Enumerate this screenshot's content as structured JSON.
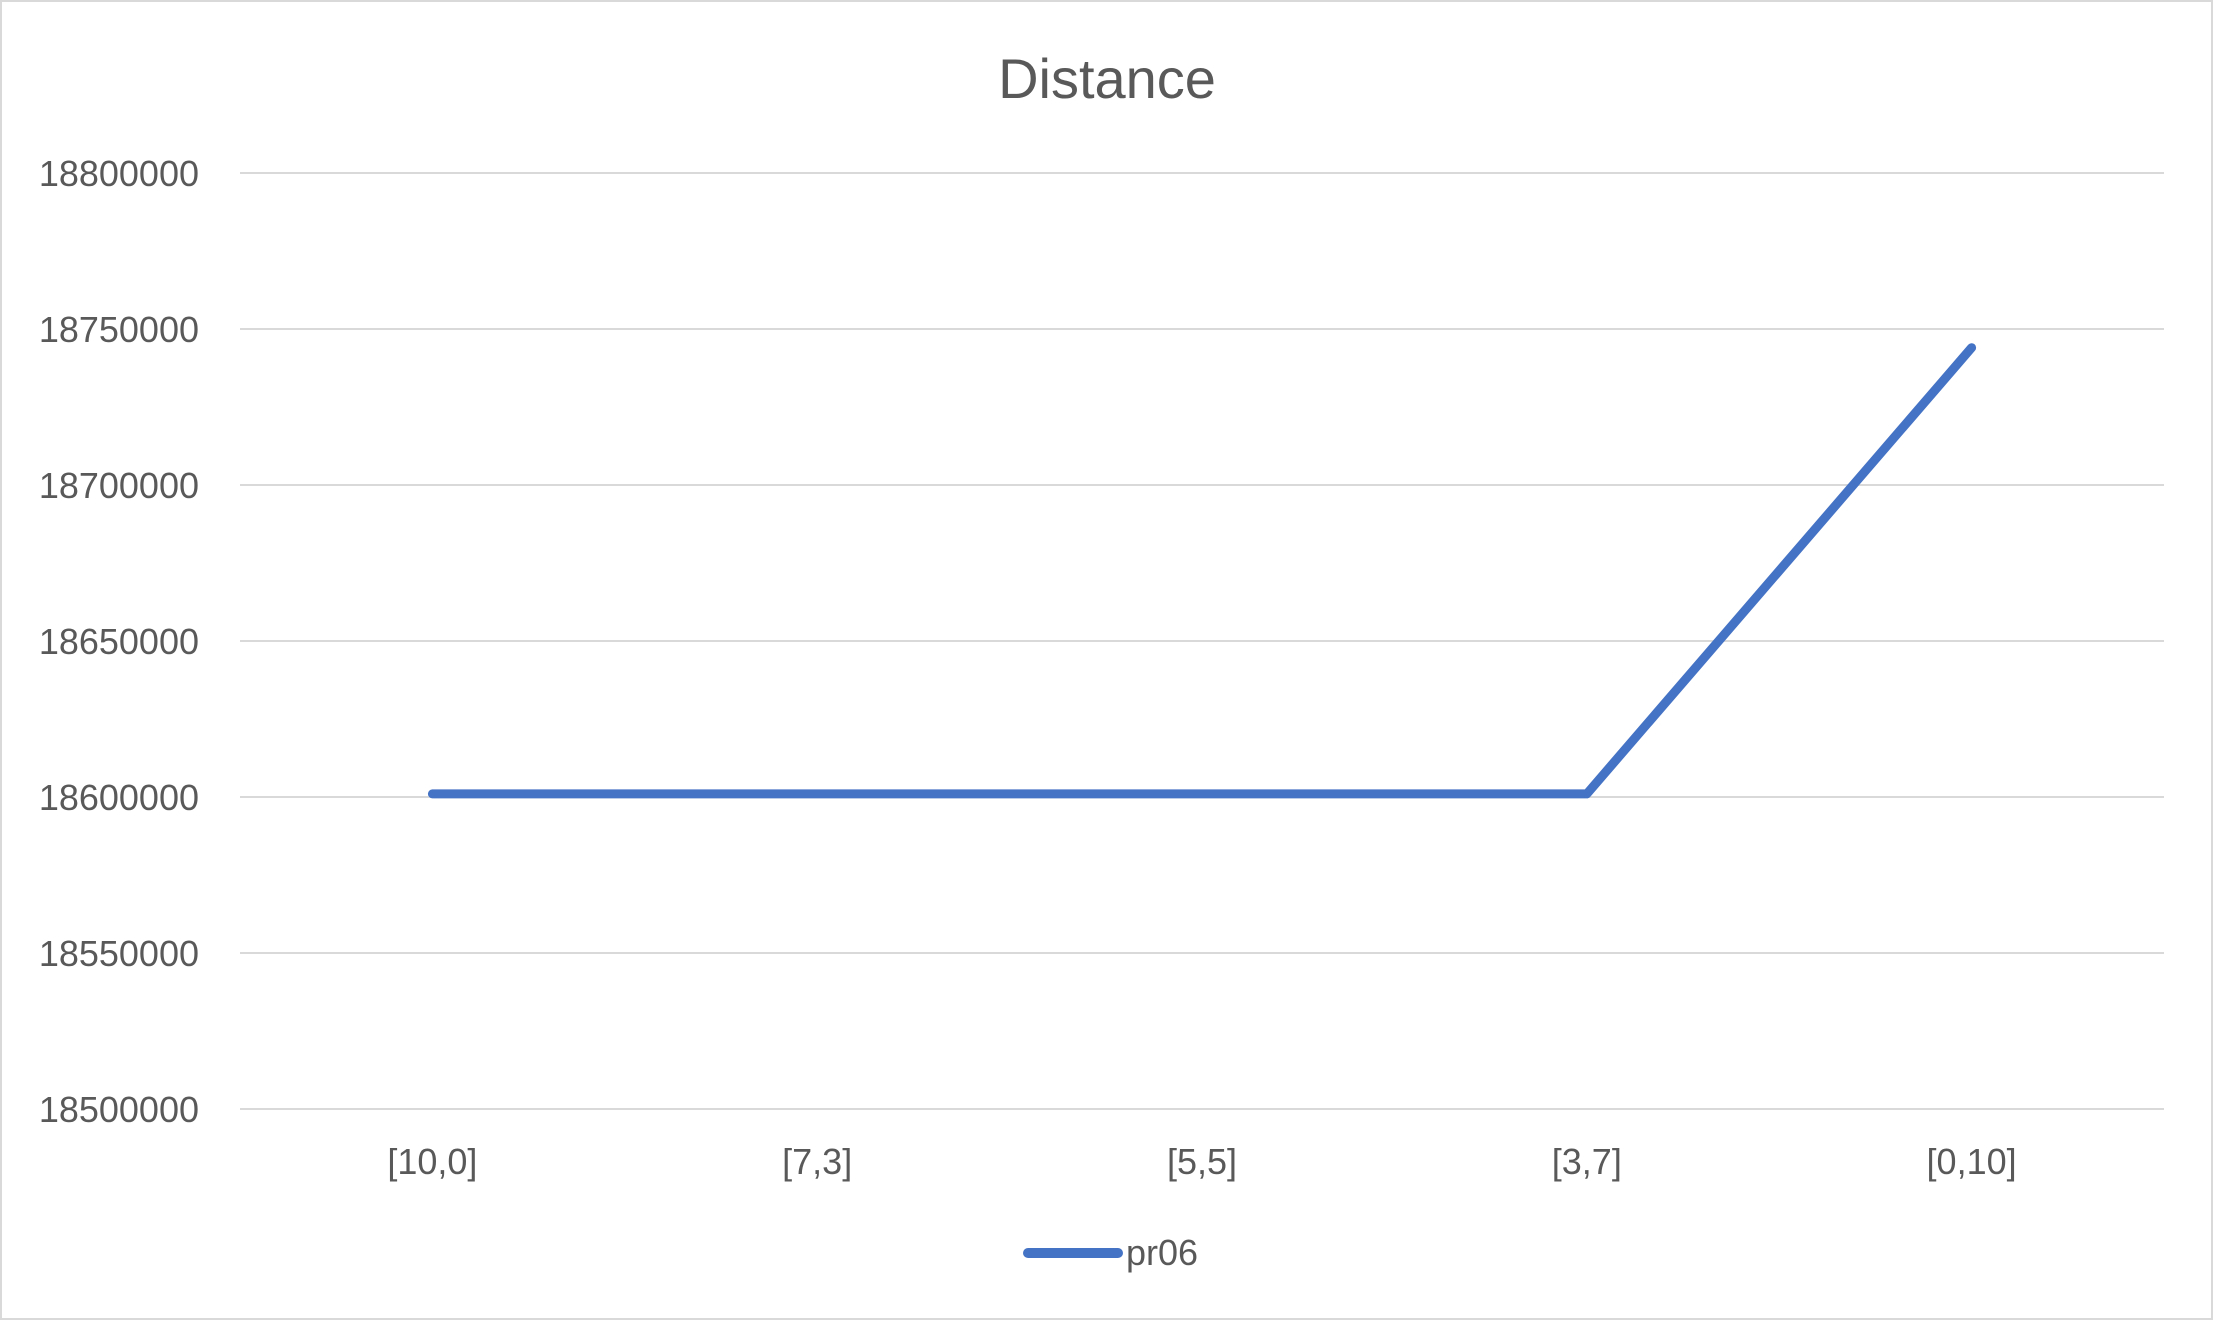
{
  "chart_data": {
    "type": "line",
    "title": "Distance",
    "xlabel": "",
    "ylabel": "",
    "categories": [
      "[10,0]",
      "[7,3]",
      "[5,5]",
      "[3,7]",
      "[0,10]"
    ],
    "series": [
      {
        "name": "pr06",
        "color": "#4472c4",
        "values": [
          18601000,
          18601000,
          18601000,
          18601000,
          18744000
        ]
      }
    ],
    "ylim": [
      18500000,
      18800000
    ],
    "yticks": [
      18500000,
      18550000,
      18600000,
      18650000,
      18700000,
      18750000,
      18800000
    ],
    "ytick_labels": [
      "18500000",
      "18550000",
      "18600000",
      "18650000",
      "18700000",
      "18750000",
      "18800000"
    ],
    "grid": true,
    "gridline_color": "#d9d9d9",
    "legend_position": "bottom"
  }
}
